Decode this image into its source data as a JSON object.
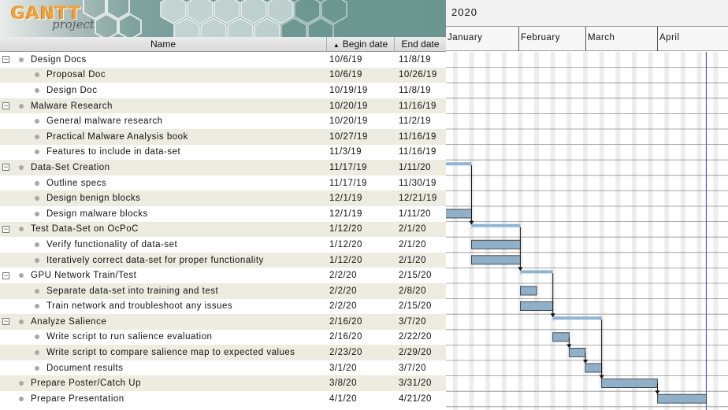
{
  "logo": {
    "brand": "GANTT",
    "sub": "project"
  },
  "columns": {
    "name": "Name",
    "begin": "Begin date",
    "end": "End date",
    "sort_icon": "triangle-up-icon"
  },
  "chart": {
    "year": "2020",
    "months": [
      "January",
      "February",
      "March",
      "April"
    ],
    "today_line_color": "#3b3bd1",
    "bar_color": "#8fb0c8",
    "summary_color": "#8fb5d3"
  },
  "tasks": [
    {
      "name": "Design Docs",
      "begin": "10/6/19",
      "end": "11/8/19",
      "level": 0,
      "group": true
    },
    {
      "name": "Proposal Doc",
      "begin": "10/6/19",
      "end": "10/26/19",
      "level": 1,
      "group": false
    },
    {
      "name": "Design Doc",
      "begin": "10/19/19",
      "end": "11/8/19",
      "level": 1,
      "group": false
    },
    {
      "name": "Malware Research",
      "begin": "10/20/19",
      "end": "11/16/19",
      "level": 0,
      "group": true
    },
    {
      "name": "General malware research",
      "begin": "10/20/19",
      "end": "11/2/19",
      "level": 1,
      "group": false
    },
    {
      "name": "Practical Malware Analysis book",
      "begin": "10/27/19",
      "end": "11/16/19",
      "level": 1,
      "group": false
    },
    {
      "name": "Features to include in data-set",
      "begin": "11/3/19",
      "end": "11/16/19",
      "level": 1,
      "group": false
    },
    {
      "name": "Data-Set Creation",
      "begin": "11/17/19",
      "end": "1/11/20",
      "level": 0,
      "group": true
    },
    {
      "name": "Outline specs",
      "begin": "11/17/19",
      "end": "11/30/19",
      "level": 1,
      "group": false
    },
    {
      "name": "Design benign blocks",
      "begin": "12/1/19",
      "end": "12/21/19",
      "level": 1,
      "group": false
    },
    {
      "name": "Design malware blocks",
      "begin": "12/1/19",
      "end": "1/11/20",
      "level": 1,
      "group": false
    },
    {
      "name": "Test Data-Set on OcPoC",
      "begin": "1/12/20",
      "end": "2/1/20",
      "level": 0,
      "group": true
    },
    {
      "name": "Verify functionality of data-set",
      "begin": "1/12/20",
      "end": "2/1/20",
      "level": 1,
      "group": false
    },
    {
      "name": "Iteratively correct data-set for proper functionality",
      "begin": "1/12/20",
      "end": "2/1/20",
      "level": 1,
      "group": false
    },
    {
      "name": "GPU Network Train/Test",
      "begin": "2/2/20",
      "end": "2/15/20",
      "level": 0,
      "group": true
    },
    {
      "name": "Separate data-set into training and test",
      "begin": "2/2/20",
      "end": "2/8/20",
      "level": 1,
      "group": false
    },
    {
      "name": "Train network and troubleshoot any issues",
      "begin": "2/2/20",
      "end": "2/15/20",
      "level": 1,
      "group": false
    },
    {
      "name": "Analyze Salience",
      "begin": "2/16/20",
      "end": "3/7/20",
      "level": 0,
      "group": true
    },
    {
      "name": "Write script to run salience evaluation",
      "begin": "2/16/20",
      "end": "2/22/20",
      "level": 1,
      "group": false
    },
    {
      "name": "Write script to compare salience map to expected values",
      "begin": "2/23/20",
      "end": "2/29/20",
      "level": 1,
      "group": false
    },
    {
      "name": "Document results",
      "begin": "3/1/20",
      "end": "3/7/20",
      "level": 1,
      "group": false
    },
    {
      "name": "Prepare Poster/Catch Up",
      "begin": "3/8/20",
      "end": "3/31/20",
      "level": 0,
      "group": false
    },
    {
      "name": "Prepare Presentation",
      "begin": "4/1/20",
      "end": "4/21/20",
      "level": 0,
      "group": false
    }
  ]
}
